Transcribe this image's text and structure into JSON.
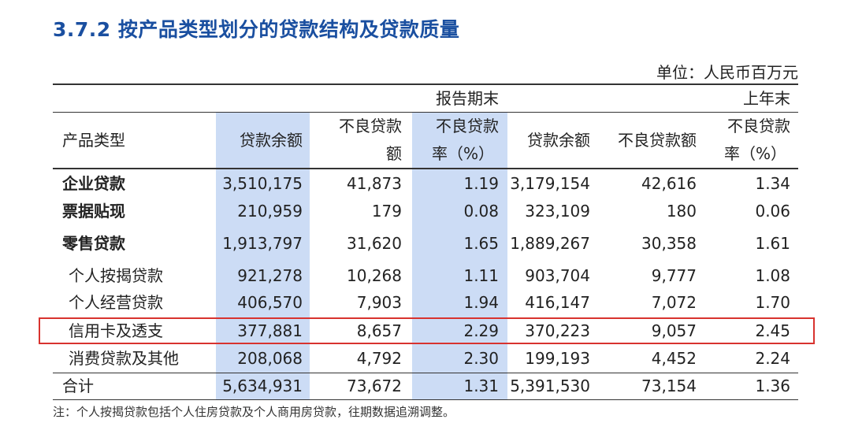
{
  "title": "3.7.2 按产品类型划分的贷款结构及贷款质量",
  "unit": "单位：人民币百万元",
  "header": {
    "period_current": "报告期末",
    "period_prior": "上年末",
    "col_type": "产品类型",
    "col_balance": "贷款余额",
    "col_npl_line1": "不良贷款",
    "col_npl_line2": "额",
    "col_npl_prior": "不良贷款额",
    "col_ratio_line1": "不良贷款",
    "col_ratio_line2": "率（%）"
  },
  "rows": [
    {
      "name": "企业贷款",
      "bal": "3,510,175",
      "npl": "41,873",
      "ratio": "1.19",
      "bal_p": "3,179,154",
      "npl_p": "42,616",
      "ratio_p": "1.34"
    },
    {
      "name": "票据贴现",
      "bal": "210,959",
      "npl": "179",
      "ratio": "0.08",
      "bal_p": "323,109",
      "npl_p": "180",
      "ratio_p": "0.06"
    },
    {
      "name": "零售贷款",
      "bal": "1,913,797",
      "npl": "31,620",
      "ratio": "1.65",
      "bal_p": "1,889,267",
      "npl_p": "30,358",
      "ratio_p": "1.61"
    },
    {
      "name": "个人按揭贷款",
      "bal": "921,278",
      "npl": "10,268",
      "ratio": "1.11",
      "bal_p": "903,704",
      "npl_p": "9,777",
      "ratio_p": "1.08"
    },
    {
      "name": "个人经营贷款",
      "bal": "406,570",
      "npl": "7,903",
      "ratio": "1.94",
      "bal_p": "416,147",
      "npl_p": "7,072",
      "ratio_p": "1.70"
    },
    {
      "name": "信用卡及透支",
      "bal": "377,881",
      "npl": "8,657",
      "ratio": "2.29",
      "bal_p": "370,223",
      "npl_p": "9,057",
      "ratio_p": "2.45"
    },
    {
      "name": "消费贷款及其他",
      "bal": "208,068",
      "npl": "4,792",
      "ratio": "2.30",
      "bal_p": "199,193",
      "npl_p": "4,452",
      "ratio_p": "2.24"
    },
    {
      "name": "合计",
      "bal": "5,634,931",
      "npl": "73,672",
      "ratio": "1.31",
      "bal_p": "5,391,530",
      "npl_p": "73,154",
      "ratio_p": "1.36"
    }
  ],
  "note": "注：个人按揭贷款包括个人住房贷款及个人商用房贷款，往期数据追溯调整。",
  "colors": {
    "title": "#1a4fa0",
    "highlight": "#ccdcf5",
    "redbox": "#d8332f"
  }
}
